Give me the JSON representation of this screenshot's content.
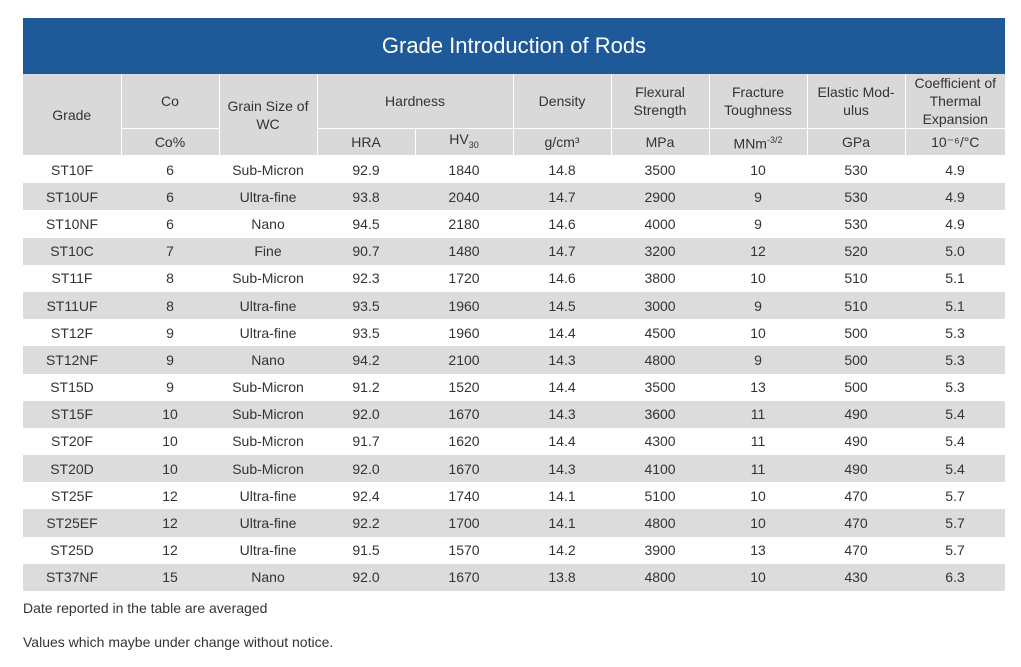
{
  "title": "Grade Introduction of Rods",
  "headers": {
    "grade": "Grade",
    "co": "Co",
    "grain_size": "Grain Size of WC",
    "hardness": "Hardness",
    "density": "Density",
    "flexural_strength": "Flexural Strength",
    "fracture_toughness": "Fracture Toughness",
    "elastic_modulus": "Elastic Mod- ulus",
    "thermal_expansion": "Coefficient of Thermal Expansion"
  },
  "units": {
    "co": "Co%",
    "hra": "HRA",
    "hv": "HV",
    "hv_sub": "30",
    "density": "g/cm³",
    "flexural": "MPa",
    "fracture": "MNm",
    "fracture_sup": "-3/2",
    "elastic": "GPa",
    "thermal": "10⁻⁶/°C"
  },
  "rows": [
    [
      "ST10F",
      "6",
      "Sub-Micron",
      "92.9",
      "1840",
      "14.8",
      "3500",
      "10",
      "530",
      "4.9"
    ],
    [
      "ST10UF",
      "6",
      "Ultra-fine",
      "93.8",
      "2040",
      "14.7",
      "2900",
      "9",
      "530",
      "4.9"
    ],
    [
      "ST10NF",
      "6",
      "Nano",
      "94.5",
      "2180",
      "14.6",
      "4000",
      "9",
      "530",
      "4.9"
    ],
    [
      "ST10C",
      "7",
      "Fine",
      "90.7",
      "1480",
      "14.7",
      "3200",
      "12",
      "520",
      "5.0"
    ],
    [
      "ST11F",
      "8",
      "Sub-Micron",
      "92.3",
      "1720",
      "14.6",
      "3800",
      "10",
      "510",
      "5.1"
    ],
    [
      "ST11UF",
      "8",
      "Ultra-fine",
      "93.5",
      "1960",
      "14.5",
      "3000",
      "9",
      "510",
      "5.1"
    ],
    [
      "ST12F",
      "9",
      "Ultra-fine",
      "93.5",
      "1960",
      "14.4",
      "4500",
      "10",
      "500",
      "5.3"
    ],
    [
      "ST12NF",
      "9",
      "Nano",
      "94.2",
      "2100",
      "14.3",
      "4800",
      "9",
      "500",
      "5.3"
    ],
    [
      "ST15D",
      "9",
      "Sub-Micron",
      "91.2",
      "1520",
      "14.4",
      "3500",
      "13",
      "500",
      "5.3"
    ],
    [
      "ST15F",
      "10",
      "Sub-Micron",
      "92.0",
      "1670",
      "14.3",
      "3600",
      "11",
      "490",
      "5.4"
    ],
    [
      "ST20F",
      "10",
      "Sub-Micron",
      "91.7",
      "1620",
      "14.4",
      "4300",
      "11",
      "490",
      "5.4"
    ],
    [
      "ST20D",
      "10",
      "Sub-Micron",
      "92.0",
      "1670",
      "14.3",
      "4100",
      "11",
      "490",
      "5.4"
    ],
    [
      "ST25F",
      "12",
      "Ultra-fine",
      "92.4",
      "1740",
      "14.1",
      "5100",
      "10",
      "470",
      "5.7"
    ],
    [
      "ST25EF",
      "12",
      "Ultra-fine",
      "92.2",
      "1700",
      "14.1",
      "4800",
      "10",
      "470",
      "5.7"
    ],
    [
      "ST25D",
      "12",
      "Ultra-fine",
      "91.5",
      "1570",
      "14.2",
      "3900",
      "13",
      "470",
      "5.7"
    ],
    [
      "ST37NF",
      "15",
      "Nano",
      "92.0",
      "1670",
      "13.8",
      "4800",
      "10",
      "430",
      "6.3"
    ]
  ],
  "notes": [
    "Date reported in the table are averaged",
    "Values which maybe under change without notice."
  ],
  "colors": {
    "title_bg": "#1e5a9a",
    "header_bg": "#d9d9d9",
    "stripe": "#dcdcdc"
  }
}
